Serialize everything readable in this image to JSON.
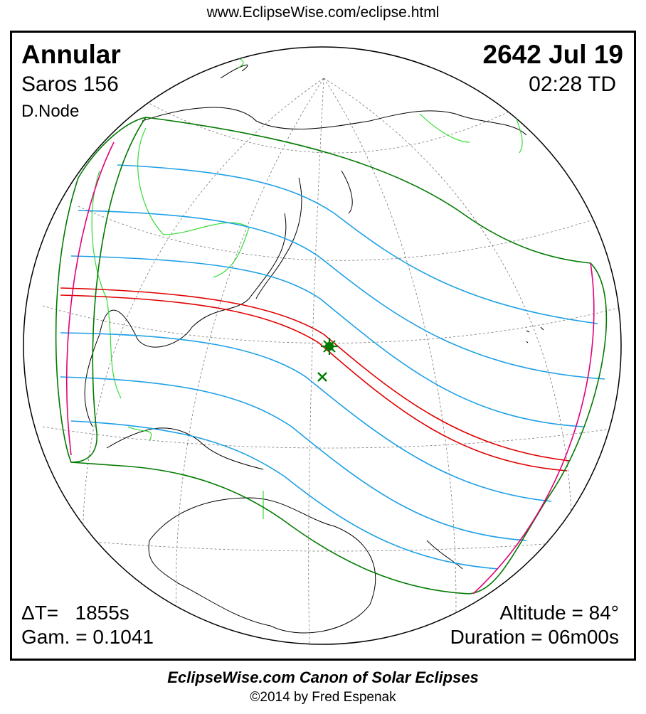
{
  "header": {
    "url": "www.EclipseWise.com/eclipse.html"
  },
  "eclipse": {
    "type": "Annular",
    "saros": "Saros 156",
    "node": "D.Node",
    "date": "2642 Jul 19",
    "time": "02:28 TD",
    "delta_t": "ΔT=   1855s",
    "gamma": "Gam. = 0.1041",
    "altitude": "Altitude = 84°",
    "duration": "Duration = 06m00s"
  },
  "footer": {
    "title": "EclipseWise.com Canon of Solar Eclipses",
    "copyright": "©2014 by Fred Espenak"
  },
  "colors": {
    "central_path": "#e00000",
    "penumbral_lines": "#1ea0e6",
    "penumbra_limits": "#007a00",
    "rise_set": "#e0007a",
    "borders": "#33dd33"
  },
  "markers": {
    "greatest_eclipse": "star-icon",
    "sub_solar": "cross-icon"
  }
}
